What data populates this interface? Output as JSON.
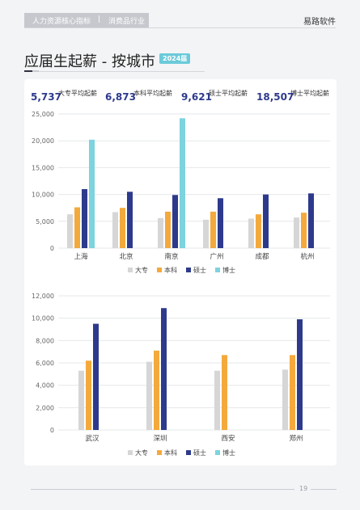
{
  "header": {
    "category": "人力资源核心指标",
    "separator": "|",
    "industry": "消费品行业",
    "brand": "易路软件"
  },
  "page_title": "应届生起薪 - 按城市",
  "year_badge": "2024届",
  "stats": [
    {
      "value": "5,737",
      "label": "大专平均起薪"
    },
    {
      "value": "6,873",
      "label": "本科平均起薪"
    },
    {
      "value": "9,621",
      "label": "硕士平均起薪"
    },
    {
      "value": "18,507",
      "label": "博士平均起薪"
    }
  ],
  "colors": {
    "大专": "#d6d6d6",
    "本科": "#f4a93c",
    "硕士": "#2d3a8c",
    "博士": "#7dd3de"
  },
  "chart_data": [
    {
      "type": "bar",
      "categories": [
        "上海",
        "北京",
        "南京",
        "广州",
        "成都",
        "杭州"
      ],
      "ylim": [
        0,
        25000
      ],
      "yticks": [
        0,
        5000,
        10000,
        15000,
        20000,
        25000
      ],
      "ytick_labels": [
        "0",
        "5,000",
        "10,000",
        "15,000",
        "20,000",
        "25,000"
      ],
      "legend": "bottom",
      "legend_labels": [
        "大专",
        "本科",
        "硕士",
        "博士"
      ],
      "series": [
        {
          "name": "大专",
          "values": [
            6300,
            6700,
            5600,
            5300,
            5500,
            5700
          ]
        },
        {
          "name": "本科",
          "values": [
            7600,
            7500,
            6800,
            6800,
            6300,
            6600
          ]
        },
        {
          "name": "硕士",
          "values": [
            11000,
            10500,
            9900,
            9300,
            10000,
            10200
          ]
        },
        {
          "name": "博士",
          "values": [
            20200,
            null,
            24200,
            null,
            null,
            null
          ]
        }
      ]
    },
    {
      "type": "bar",
      "categories": [
        "武汉",
        "深圳",
        "西安",
        "郑州"
      ],
      "ylim": [
        0,
        12000
      ],
      "yticks": [
        0,
        2000,
        4000,
        6000,
        8000,
        10000,
        12000
      ],
      "ytick_labels": [
        "0",
        "2,000",
        "4,000",
        "6,000",
        "8,000",
        "10,000",
        "12,000"
      ],
      "legend": "bottom",
      "legend_labels": [
        "大专",
        "本科",
        "硕士",
        "博士"
      ],
      "series": [
        {
          "name": "大专",
          "values": [
            5300,
            6100,
            5300,
            5400
          ]
        },
        {
          "name": "本科",
          "values": [
            6200,
            7100,
            6700,
            6700
          ]
        },
        {
          "name": "硕士",
          "values": [
            9500,
            10900,
            null,
            9900
          ]
        },
        {
          "name": "博士",
          "values": [
            null,
            null,
            null,
            null
          ]
        }
      ]
    }
  ],
  "footer": {
    "page_number": "19"
  }
}
